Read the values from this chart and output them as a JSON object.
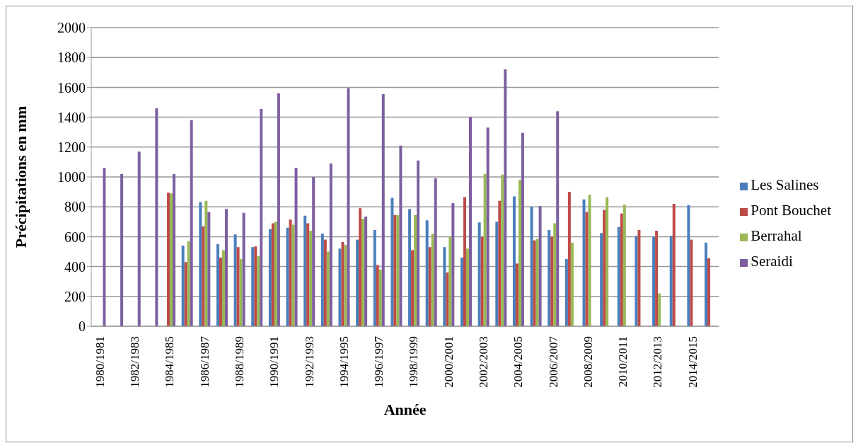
{
  "chart_data": {
    "type": "bar",
    "xlabel": "Année",
    "ylabel": "Précipitations en mm",
    "categories": [
      "1980/1981",
      null,
      "1982/1983",
      null,
      "1984/1985",
      null,
      "1986/1987",
      null,
      "1988/1989",
      null,
      "1990/1991",
      null,
      "1992/1993",
      null,
      "1994/1995",
      null,
      "1996/1997",
      null,
      "1998/1999",
      null,
      "2000/2001",
      null,
      "2002/2003",
      null,
      "2004/2005",
      null,
      "2006/2007",
      null,
      "2008/2009",
      null,
      "2010/2011",
      null,
      "2012/2013",
      null,
      "2014/2015",
      null
    ],
    "series": [
      {
        "name": "Les Salines",
        "color": "#4a7ebb",
        "values": [
          null,
          null,
          null,
          null,
          null,
          540,
          830,
          550,
          615,
          530,
          650,
          660,
          740,
          620,
          520,
          580,
          645,
          860,
          785,
          710,
          530,
          460,
          695,
          700,
          870,
          800,
          645,
          450,
          850,
          625,
          665,
          605,
          600,
          605,
          810,
          560
        ]
      },
      {
        "name": "Pont Bouchet",
        "color": "#be4b48",
        "values": [
          null,
          null,
          null,
          null,
          895,
          430,
          670,
          460,
          530,
          535,
          690,
          715,
          690,
          580,
          565,
          790,
          410,
          745,
          510,
          530,
          360,
          865,
          600,
          840,
          420,
          575,
          600,
          900,
          765,
          780,
          755,
          645,
          640,
          820,
          580,
          455
        ]
      },
      {
        "name": "Berrahal",
        "color": "#98b954",
        "values": [
          null,
          null,
          null,
          null,
          890,
          570,
          840,
          510,
          450,
          470,
          700,
          680,
          640,
          500,
          545,
          720,
          380,
          745,
          745,
          620,
          600,
          520,
          1020,
          1015,
          980,
          585,
          690,
          560,
          880,
          865,
          815,
          null,
          220,
          null,
          null,
          null
        ]
      },
      {
        "name": "Seraidi",
        "color": "#7d5fa0",
        "values": [
          1060,
          1020,
          1170,
          1460,
          1020,
          1380,
          765,
          785,
          760,
          1455,
          1560,
          1060,
          1000,
          1090,
          1595,
          735,
          1555,
          1210,
          1110,
          990,
          825,
          1400,
          1330,
          1720,
          1295,
          805,
          1440,
          null,
          null,
          null,
          null,
          null,
          null,
          null,
          null,
          null
        ]
      }
    ],
    "ylim": [
      0,
      2000
    ],
    "yticks": [
      0,
      200,
      400,
      600,
      800,
      1000,
      1200,
      1400,
      1600,
      1800,
      2000
    ],
    "grid": "y",
    "legend": "right"
  }
}
